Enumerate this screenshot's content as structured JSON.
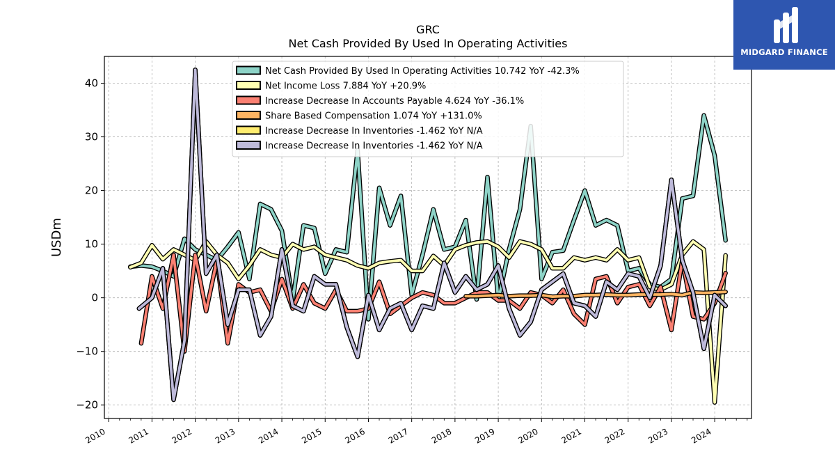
{
  "brand": {
    "name": "MIDGARD FINANCE",
    "logo_color": "#2e56b0"
  },
  "chart_data": {
    "type": "line",
    "title": "GRC",
    "subtitle": "Net Cash Provided By Used In Operating Activities",
    "ylabel": "USDm",
    "xlabel": "",
    "xlim": [
      2009.9,
      2024.85
    ],
    "ylim": [
      -22.5,
      45
    ],
    "grid": true,
    "legend_position": "top-center",
    "y_ticks": [
      -20,
      -10,
      0,
      10,
      20,
      30,
      40
    ],
    "y_tick_labels": [
      "−20",
      "−10",
      "0",
      "10",
      "20",
      "30",
      "40"
    ],
    "x_ticks": [
      2010,
      2011,
      2012,
      2013,
      2014,
      2015,
      2016,
      2017,
      2018,
      2019,
      2020,
      2021,
      2022,
      2023,
      2024
    ],
    "x_tick_labels": [
      "2010",
      "2011",
      "2012",
      "2013",
      "2014",
      "2015",
      "2016",
      "2017",
      "2018",
      "2019",
      "2020",
      "2021",
      "2022",
      "2023",
      "2024"
    ],
    "series": [
      {
        "name": "Net Cash Provided By Used In Operating Activities  10.742 YoY -42.3%",
        "color": "#8dd3c7",
        "x": [
          2010.5,
          2010.75,
          2011.0,
          2011.25,
          2011.5,
          2011.75,
          2012.0,
          2012.25,
          2012.5,
          2012.75,
          2013.0,
          2013.25,
          2013.5,
          2013.75,
          2014.0,
          2014.25,
          2014.5,
          2014.75,
          2015.0,
          2015.25,
          2015.5,
          2015.75,
          2016.0,
          2016.25,
          2016.5,
          2016.75,
          2017.0,
          2017.25,
          2017.5,
          2017.75,
          2018.0,
          2018.25,
          2018.5,
          2018.75,
          2019.0,
          2019.25,
          2019.5,
          2019.75,
          2020.0,
          2020.25,
          2020.5,
          2020.75,
          2021.0,
          2021.25,
          2021.5,
          2021.75,
          2022.0,
          2022.25,
          2022.5,
          2022.75,
          2023.0,
          2023.25,
          2023.5,
          2023.75,
          2024.0,
          2024.25
        ],
        "values": [
          5.8,
          6.0,
          5.8,
          5.0,
          4.0,
          11.0,
          9.0,
          8.0,
          7.0,
          9.5,
          12.2,
          3.5,
          17.5,
          16.5,
          12.5,
          -0.5,
          13.5,
          13.0,
          4.5,
          9.0,
          8.5,
          27.5,
          -4.0,
          20.5,
          13.5,
          19.0,
          0.5,
          8.0,
          16.5,
          9.0,
          9.5,
          14.5,
          -0.3,
          22.5,
          -0.5,
          9.0,
          16.5,
          32.0,
          3.5,
          8.5,
          8.8,
          14.5,
          20.0,
          13.5,
          14.5,
          13.5,
          5.0,
          5.5,
          2.5,
          2.0,
          3.5,
          18.5,
          19.0,
          34.0,
          26.5,
          10.7
        ]
      },
      {
        "name": "Net Income Loss  7.884 YoY +20.9%",
        "color": "#ffffb3",
        "x": [
          2010.5,
          2010.75,
          2011.0,
          2011.25,
          2011.5,
          2011.75,
          2012.0,
          2012.25,
          2012.5,
          2012.75,
          2013.0,
          2013.25,
          2013.5,
          2013.75,
          2014.0,
          2014.25,
          2014.5,
          2014.75,
          2015.0,
          2015.25,
          2015.5,
          2015.75,
          2016.0,
          2016.25,
          2016.5,
          2016.75,
          2017.0,
          2017.25,
          2017.5,
          2017.75,
          2018.0,
          2018.25,
          2018.5,
          2018.75,
          2019.0,
          2019.25,
          2019.5,
          2019.75,
          2020.0,
          2020.25,
          2020.5,
          2020.75,
          2021.0,
          2021.25,
          2021.5,
          2021.75,
          2022.0,
          2022.25,
          2022.5,
          2022.75,
          2023.0,
          2023.25,
          2023.5,
          2023.75,
          2024.0,
          2024.25
        ],
        "values": [
          5.7,
          6.5,
          9.8,
          7.2,
          9.0,
          8.0,
          7.0,
          10.5,
          8.0,
          6.5,
          3.5,
          6.0,
          9.0,
          8.0,
          7.5,
          10.0,
          9.0,
          9.5,
          8.0,
          7.5,
          7.0,
          6.0,
          5.5,
          6.5,
          6.8,
          7.0,
          5.0,
          5.0,
          7.8,
          6.0,
          9.0,
          9.8,
          10.3,
          10.5,
          9.5,
          7.5,
          10.5,
          10.0,
          9.0,
          5.5,
          5.5,
          7.5,
          7.0,
          7.5,
          7.0,
          9.0,
          7.0,
          7.5,
          2.0,
          1.5,
          2.5,
          8.0,
          10.5,
          9.0,
          -19.5,
          7.9
        ]
      },
      {
        "name": "Increase Decrease In Accounts Payable  4.624 YoY -36.1%",
        "color": "#fb8072",
        "x": [
          2010.75,
          2011.0,
          2011.25,
          2011.5,
          2011.75,
          2012.0,
          2012.25,
          2012.5,
          2012.75,
          2013.0,
          2013.25,
          2013.5,
          2013.75,
          2014.0,
          2014.25,
          2014.5,
          2014.75,
          2015.0,
          2015.25,
          2015.5,
          2015.75,
          2016.0,
          2016.25,
          2016.5,
          2016.75,
          2017.0,
          2017.25,
          2017.5,
          2017.75,
          2018.0,
          2018.25,
          2018.5,
          2018.75,
          2019.0,
          2019.25,
          2019.5,
          2019.75,
          2020.0,
          2020.25,
          2020.5,
          2020.75,
          2021.0,
          2021.25,
          2021.5,
          2021.75,
          2022.0,
          2022.25,
          2022.5,
          2022.75,
          2023.0,
          2023.25,
          2023.5,
          2023.75,
          2024.0,
          2024.25
        ],
        "values": [
          -8.5,
          4.0,
          -2.0,
          8.0,
          -10.0,
          8.0,
          -2.5,
          7.0,
          -8.5,
          2.5,
          1.0,
          1.5,
          -2.5,
          3.5,
          -2.0,
          2.5,
          -1.0,
          -2.0,
          1.5,
          -2.5,
          -2.5,
          -2.0,
          3.0,
          -3.0,
          -1.5,
          0.0,
          1.0,
          0.5,
          -1.0,
          -1.0,
          0.0,
          1.0,
          1.0,
          -0.5,
          -0.5,
          -2.0,
          1.0,
          0.5,
          -1.0,
          1.5,
          -3.0,
          -5.0,
          3.5,
          4.0,
          -1.0,
          2.0,
          2.5,
          -1.5,
          2.0,
          -6.0,
          7.0,
          -3.5,
          -4.0,
          -1.0,
          4.6
        ]
      },
      {
        "name": "Share Based Compensation  1.074 YoY +131.0%",
        "color": "#fdb462",
        "x": [
          2018.25,
          2018.5,
          2018.75,
          2019.0,
          2019.25,
          2019.5,
          2019.75,
          2020.0,
          2020.25,
          2020.5,
          2020.75,
          2021.0,
          2021.25,
          2021.5,
          2021.75,
          2022.0,
          2022.25,
          2022.5,
          2022.75,
          2023.0,
          2023.25,
          2023.5,
          2023.75,
          2024.0,
          2024.25
        ],
        "values": [
          0.3,
          0.3,
          0.4,
          0.5,
          0.3,
          0.4,
          0.4,
          0.5,
          0.2,
          0.3,
          0.3,
          0.5,
          0.5,
          0.6,
          0.5,
          0.5,
          0.6,
          0.6,
          0.6,
          0.7,
          0.5,
          1.0,
          0.9,
          1.0,
          1.1
        ]
      },
      {
        "name": "Increase Decrease In Inventories  -1.462 YoY N/A",
        "color": "#ffed6f",
        "x": [
          2010.7,
          2011.0,
          2011.25,
          2011.5,
          2011.75,
          2012.0,
          2012.25,
          2012.5,
          2012.75,
          2013.0,
          2013.25,
          2013.5,
          2013.75,
          2014.0,
          2014.25,
          2014.5,
          2014.75,
          2015.0,
          2015.25,
          2015.5,
          2015.75,
          2016.0,
          2016.25,
          2016.5,
          2016.75,
          2017.0,
          2017.25,
          2017.5,
          2017.75,
          2018.0,
          2018.25,
          2018.5,
          2018.75,
          2019.0,
          2019.25,
          2019.5,
          2019.75,
          2020.0,
          2020.25,
          2020.5,
          2020.75,
          2021.0,
          2021.25,
          2021.5,
          2021.75,
          2022.0,
          2022.25,
          2022.5,
          2022.75,
          2023.0,
          2023.25,
          2023.5,
          2023.75,
          2024.0,
          2024.25
        ],
        "values": [
          -2.0,
          0.0,
          5.5,
          -19.0,
          -8.0,
          42.5,
          4.5,
          8.0,
          -5.0,
          1.5,
          1.5,
          -7.0,
          -3.5,
          9.0,
          -1.5,
          -2.5,
          4.0,
          2.5,
          2.5,
          -5.5,
          -11.0,
          0.5,
          -6.0,
          -2.0,
          -1.0,
          -6.0,
          -1.5,
          -2.0,
          6.5,
          1.0,
          4.0,
          1.5,
          2.5,
          6.0,
          -2.0,
          -7.0,
          -4.5,
          1.5,
          3.0,
          4.5,
          -1.0,
          -1.5,
          -3.5,
          3.0,
          1.5,
          4.5,
          4.0,
          0.0,
          6.0,
          22.0,
          7.0,
          1.0,
          -9.5,
          0.5,
          -1.5
        ]
      },
      {
        "name": "Increase Decrease In Inventories  -1.462 YoY N/A",
        "color": "#bebada",
        "x": [
          2010.7,
          2011.0,
          2011.25,
          2011.5,
          2011.75,
          2012.0,
          2012.25,
          2012.5,
          2012.75,
          2013.0,
          2013.25,
          2013.5,
          2013.75,
          2014.0,
          2014.25,
          2014.5,
          2014.75,
          2015.0,
          2015.25,
          2015.5,
          2015.75,
          2016.0,
          2016.25,
          2016.5,
          2016.75,
          2017.0,
          2017.25,
          2017.5,
          2017.75,
          2018.0,
          2018.25,
          2018.5,
          2018.75,
          2019.0,
          2019.25,
          2019.5,
          2019.75,
          2020.0,
          2020.25,
          2020.5,
          2020.75,
          2021.0,
          2021.25,
          2021.5,
          2021.75,
          2022.0,
          2022.25,
          2022.5,
          2022.75,
          2023.0,
          2023.25,
          2023.5,
          2023.75,
          2024.0,
          2024.25
        ],
        "values": [
          -2.0,
          0.0,
          5.5,
          -19.0,
          -8.0,
          42.5,
          4.5,
          8.0,
          -5.0,
          1.5,
          1.5,
          -7.0,
          -3.5,
          9.0,
          -1.5,
          -2.5,
          4.0,
          2.5,
          2.5,
          -5.5,
          -11.0,
          0.5,
          -6.0,
          -2.0,
          -1.0,
          -6.0,
          -1.5,
          -2.0,
          6.5,
          1.0,
          4.0,
          1.5,
          2.5,
          6.0,
          -2.0,
          -7.0,
          -4.5,
          1.5,
          3.0,
          4.5,
          -1.0,
          -1.5,
          -3.5,
          3.0,
          1.5,
          4.5,
          4.0,
          0.0,
          6.0,
          22.0,
          7.0,
          1.0,
          -9.5,
          0.5,
          -1.5
        ]
      }
    ]
  }
}
